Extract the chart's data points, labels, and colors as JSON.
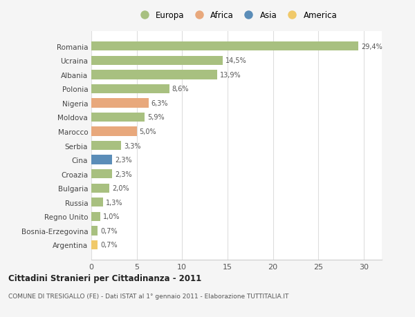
{
  "categories": [
    "Romania",
    "Ucraina",
    "Albania",
    "Polonia",
    "Nigeria",
    "Moldova",
    "Marocco",
    "Serbia",
    "Cina",
    "Croazia",
    "Bulgaria",
    "Russia",
    "Regno Unito",
    "Bosnia-Erzegovina",
    "Argentina"
  ],
  "values": [
    29.4,
    14.5,
    13.9,
    8.6,
    6.3,
    5.9,
    5.0,
    3.3,
    2.3,
    2.3,
    2.0,
    1.3,
    1.0,
    0.7,
    0.7
  ],
  "labels": [
    "29,4%",
    "14,5%",
    "13,9%",
    "8,6%",
    "6,3%",
    "5,9%",
    "5,0%",
    "3,3%",
    "2,3%",
    "2,3%",
    "2,0%",
    "1,3%",
    "1,0%",
    "0,7%",
    "0,7%"
  ],
  "bar_colors": [
    "#a8c080",
    "#a8c080",
    "#a8c080",
    "#a8c080",
    "#e8a87c",
    "#a8c080",
    "#e8a87c",
    "#a8c080",
    "#5b8db8",
    "#a8c080",
    "#a8c080",
    "#a8c080",
    "#a8c080",
    "#a8c080",
    "#f0c96a"
  ],
  "legend_labels": [
    "Europa",
    "Africa",
    "Asia",
    "America"
  ],
  "legend_colors": [
    "#a8c080",
    "#e8a87c",
    "#5b8db8",
    "#f0c96a"
  ],
  "title": "Cittadini Stranieri per Cittadinanza - 2011",
  "subtitle": "COMUNE DI TRESIGALLO (FE) - Dati ISTAT al 1° gennaio 2011 - Elaborazione TUTTITALIA.IT",
  "xlim": [
    0,
    32
  ],
  "background_color": "#f5f5f5",
  "plot_bg": "#ffffff",
  "bar_height": 0.65
}
